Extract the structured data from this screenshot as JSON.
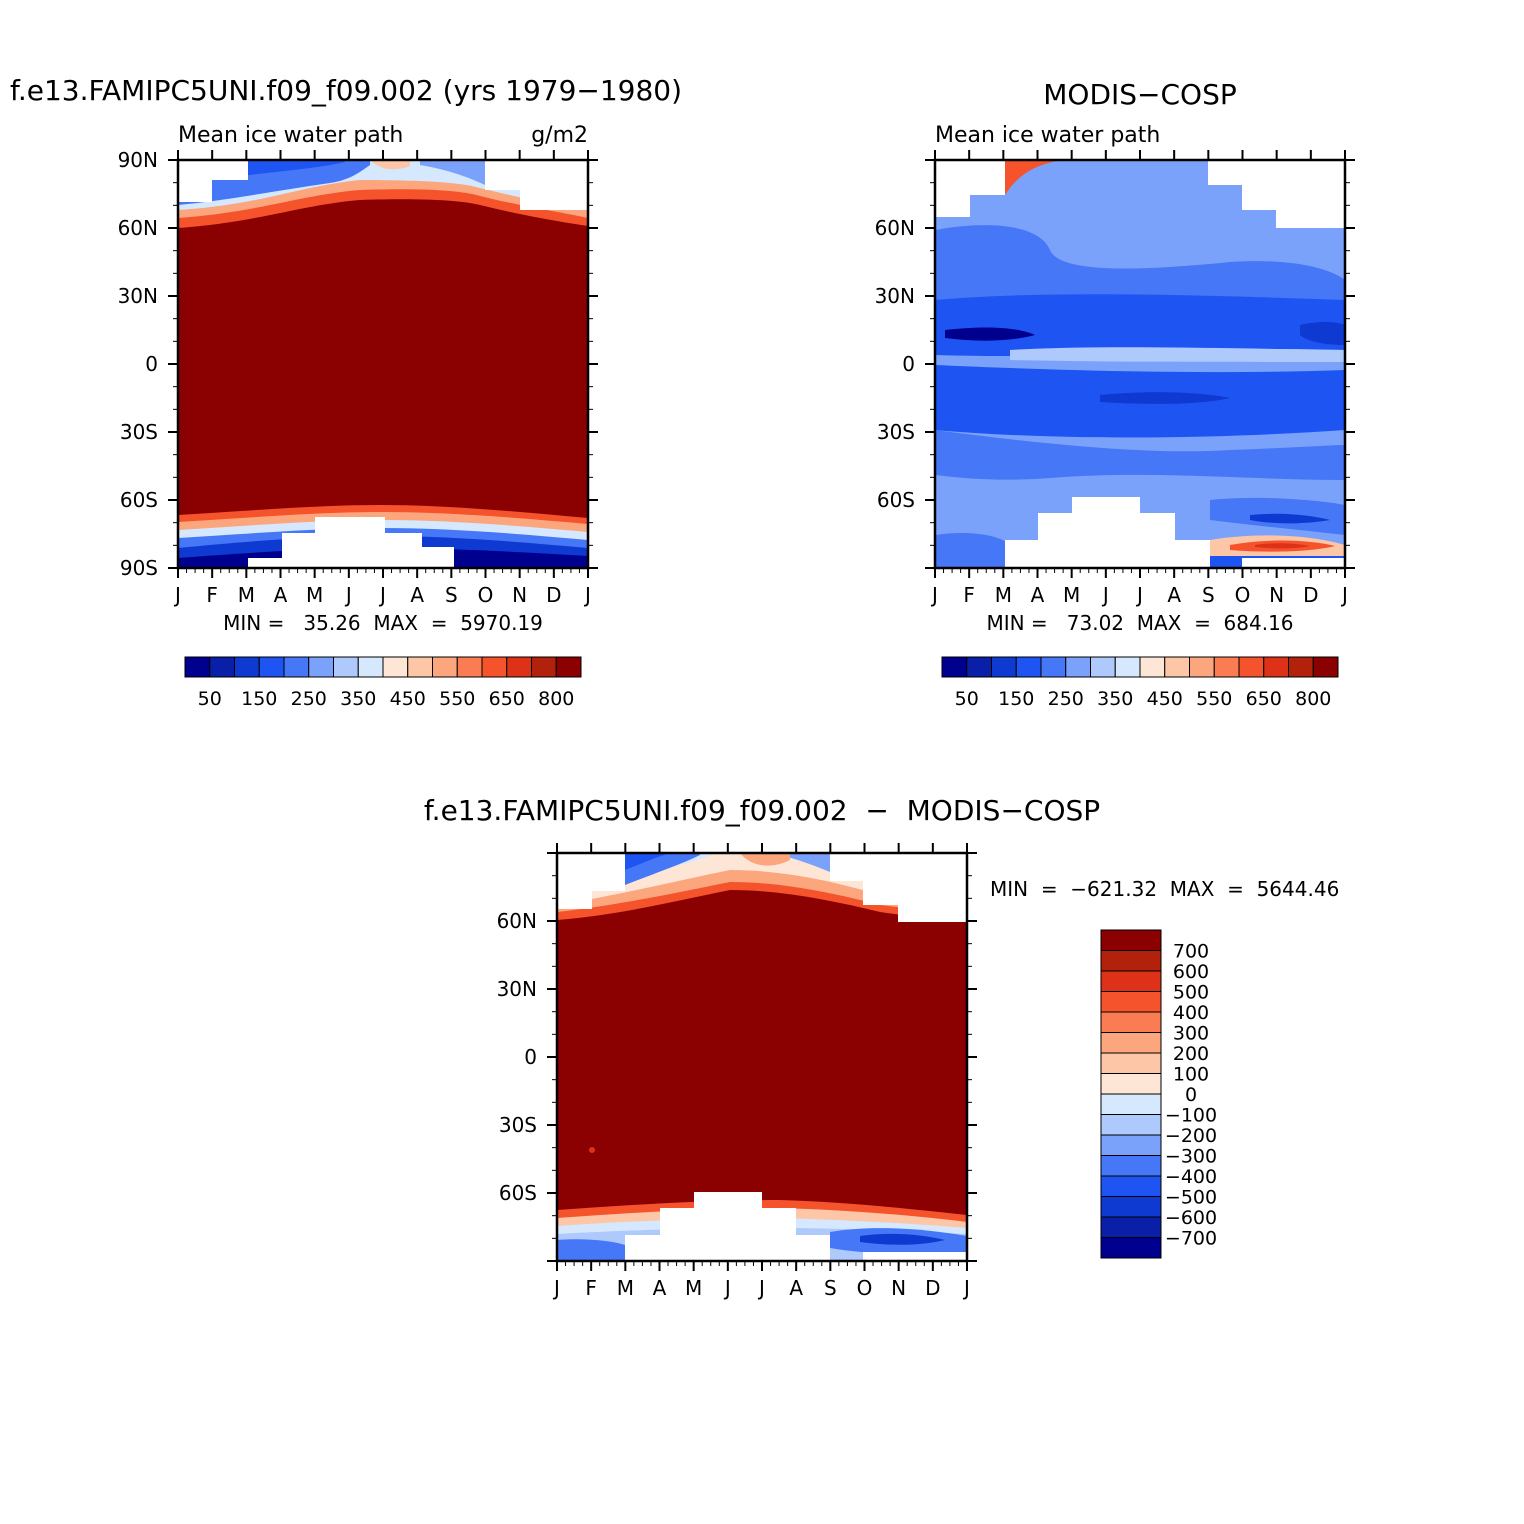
{
  "colors": {
    "model_obs_scale": [
      "#00008f",
      "#0a1fa8",
      "#0f3ad1",
      "#1e55f2",
      "#4677f7",
      "#7ba2fb",
      "#aec9fc",
      "#d6e8fd",
      "#fee6d6",
      "#fdc6a6",
      "#fca67e",
      "#f97c52",
      "#f4532c",
      "#dd3217",
      "#b1210c",
      "#8b0000"
    ],
    "diff_scale": [
      "#00008f",
      "#0a1fa8",
      "#0f3ad1",
      "#1e55f2",
      "#4677f7",
      "#7ba2fb",
      "#aec9fc",
      "#d6e8fd",
      "#fee6d6",
      "#fdc6a6",
      "#fca67e",
      "#f97c52",
      "#f4532c",
      "#dd3217",
      "#b1210c",
      "#8b0000"
    ]
  },
  "panels": {
    "model": {
      "title": "f.e13.FAMIPC5UNI.f09_f09.002 (yrs 1979−1980)",
      "left_label": "Mean ice water path",
      "right_label": "g/m2",
      "stats": "MIN =   35.26  MAX  =  5970.19"
    },
    "obs": {
      "title": "MODIS−COSP",
      "left_label": "Mean ice water path",
      "stats": "MIN =   73.02  MAX  =  684.16"
    },
    "diff": {
      "title": "f.e13.FAMIPC5UNI.f09_f09.002  −  MODIS−COSP",
      "stats": "MIN  =  −621.32  MAX  =  5644.46"
    }
  },
  "chart_data": [
    {
      "type": "heatmap",
      "title": "f.e13.FAMIPC5UNI.f09_f09.002 (yrs 1979−1980)",
      "subtitle": "Mean ice water path",
      "units": "g/m2",
      "x_ticklabels": [
        "J",
        "F",
        "M",
        "A",
        "M",
        "J",
        "J",
        "A",
        "S",
        "O",
        "N",
        "D",
        "J"
      ],
      "y_ticklabels": [
        "90N",
        "60N",
        "30N",
        "0",
        "30S",
        "60S",
        "90S"
      ],
      "ylim": [
        -90,
        90
      ],
      "min": 35.26,
      "max": 5970.19,
      "colorbar_labels": [
        "50",
        "150",
        "250",
        "350",
        "450",
        "550",
        "650",
        "800"
      ]
    },
    {
      "type": "heatmap",
      "title": "MODIS−COSP",
      "subtitle": "Mean ice water path",
      "x_ticklabels": [
        "J",
        "F",
        "M",
        "A",
        "M",
        "J",
        "J",
        "A",
        "S",
        "O",
        "N",
        "D",
        "J"
      ],
      "y_ticklabels": [
        "60N",
        "30N",
        "0",
        "30S",
        "60S"
      ],
      "ylim": [
        -90,
        90
      ],
      "min": 73.02,
      "max": 684.16,
      "colorbar_labels": [
        "50",
        "150",
        "250",
        "350",
        "450",
        "550",
        "650",
        "800"
      ]
    },
    {
      "type": "heatmap",
      "title": "f.e13.FAMIPC5UNI.f09_f09.002  −  MODIS−COSP",
      "x_ticklabels": [
        "J",
        "F",
        "M",
        "A",
        "M",
        "J",
        "J",
        "A",
        "S",
        "O",
        "N",
        "D",
        "J"
      ],
      "y_ticklabels": [
        "60N",
        "30N",
        "0",
        "30S",
        "60S"
      ],
      "ylim": [
        -90,
        90
      ],
      "min": -621.32,
      "max": 5644.46,
      "colorbar_labels": [
        "700",
        "600",
        "500",
        "400",
        "300",
        "200",
        "100",
        "0",
        "−100",
        "−200",
        "−300",
        "−400",
        "−500",
        "−600",
        "−700"
      ]
    }
  ]
}
